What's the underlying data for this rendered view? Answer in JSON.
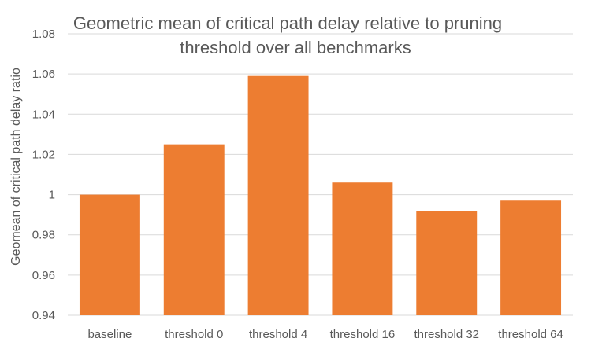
{
  "chart_data": {
    "type": "bar",
    "title_lines": [
      "Geometric mean of critical path delay relative to pruning",
      "threshold over all benchmarks"
    ],
    "xlabel": "",
    "ylabel": "Geomean of critical path delay ratio",
    "categories": [
      "baseline",
      "threshold 0",
      "threshold 4",
      "threshold 16",
      "threshold 32",
      "threshold 64"
    ],
    "values": [
      1.0,
      1.025,
      1.059,
      1.006,
      0.992,
      0.997
    ],
    "ylim": [
      0.94,
      1.08
    ],
    "yticks": [
      0.94,
      0.96,
      0.98,
      1,
      1.02,
      1.04,
      1.06,
      1.08
    ],
    "ytick_labels": [
      "0.94",
      "0.96",
      "0.98",
      "1",
      "1.02",
      "1.04",
      "1.06",
      "1.08"
    ],
    "grid": true,
    "legend": "none",
    "bar_color": "#ED7D31",
    "grid_color": "#D9D9D9",
    "text_color": "#595959"
  }
}
